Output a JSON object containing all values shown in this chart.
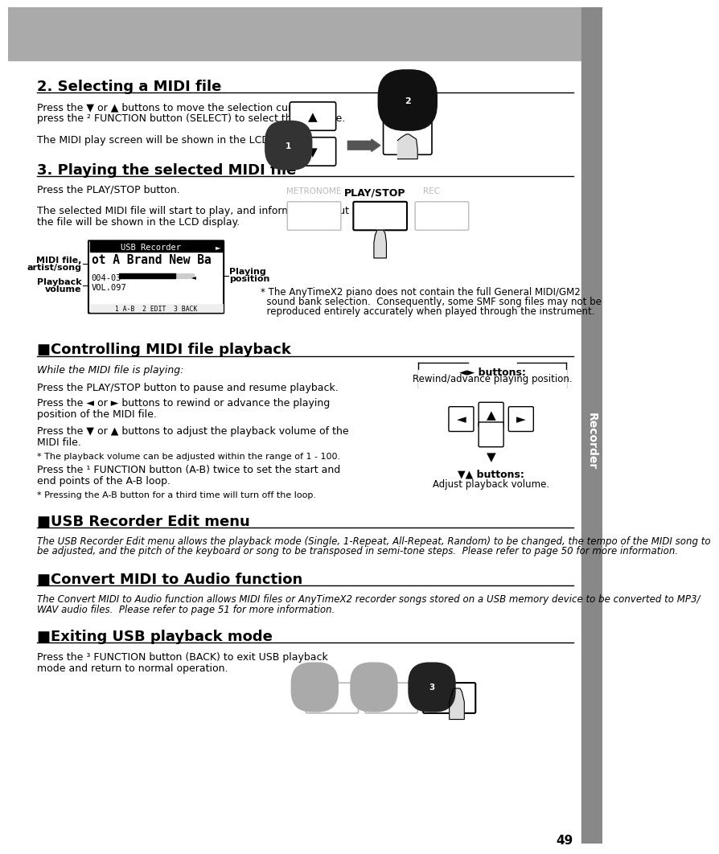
{
  "page_number": "49",
  "header_color": "#aaaaaa",
  "sidebar_color": "#888888",
  "title_bar_text": "Recorder",
  "section2_title": "2. Selecting a MIDI file",
  "section2_body1a": "Press the ▼ or ▲ buttons to move the selection cursor, then",
  "section2_body1b": "press the ² FUNCTION button (SELECT) to select the MIDI file.",
  "section2_body2": "The MIDI play screen will be shown in the LCD display.",
  "section3_title": "3. Playing the selected MIDI file",
  "section3_body1": "Press the PLAY/STOP button.",
  "section3_body2a": "The selected MIDI file will start to play, and information about",
  "section3_body2b": "the file will be shown in the LCD display.",
  "section3_note1": "* The AnyTimeX2 piano does not contain the full General MIDI/GM2",
  "section3_note2": "  sound bank selection.  Consequently, some SMF song files may not be",
  "section3_note3": "  reproduced entirely accurately when played through the instrument.",
  "section4_title": "■Controlling MIDI file playback",
  "section4_italic": "While the MIDI file is playing:",
  "section4_body1": "Press the PLAY/STOP button to pause and resume playback.",
  "section4_body2a": "Press the ◄ or ► buttons to rewind or advance the playing",
  "section4_body2b": "position of the MIDI file.",
  "section4_body3a": "Press the ▼ or ▲ buttons to adjust the playback volume of the",
  "section4_body3b": "MIDI file.",
  "section4_note1": "* The playback volume can be adjusted within the range of 1 - 100.",
  "section4_body4a": "Press the ¹ FUNCTION button (A-B) twice to set the start and",
  "section4_body4b": "end points of the A-B loop.",
  "section4_note2": "* Pressing the A-B button for a third time will turn off the loop.",
  "section5_title": "■USB Recorder Edit menu",
  "section5_body1": "The USB Recorder Edit menu allows the playback mode (Single, 1-Repeat, All-Repeat, Random) to be changed, the tempo of the MIDI song to",
  "section5_body2": "be adjusted, and the pitch of the keyboard or song to be transposed in semi-tone steps.  Please refer to page 50 for more information.",
  "section6_title": "■Convert MIDI to Audio function",
  "section6_body1": "The Convert MIDI to Audio function allows MIDI files or AnyTimeX2 recorder songs stored on a USB memory device to be converted to MP3/",
  "section6_body2": "WAV audio files.  Please refer to page 51 for more information.",
  "section7_title": "■Exiting USB playback mode",
  "section7_body1": "Press the ³ FUNCTION button (BACK) to exit USB playback",
  "section7_body2": "mode and return to normal operation.",
  "lr_buttons_label": "◄► buttons:",
  "lr_buttons_desc": "Rewind/advance playing position.",
  "ud_buttons_label": "▼▲ buttons:",
  "ud_buttons_desc": "Adjust playback volume.",
  "midi_display_title": "USB Recorder",
  "midi_display_line1": "ot A Brand New Ba",
  "midi_display_line2": "004-03",
  "midi_display_line3": "VOL.097",
  "midi_display_btns": "1 A-B  2 EDIT  3 BACK",
  "label_midi_file1": "MIDI file,",
  "label_midi_file2": "artist/song",
  "label_playback_vol1": "Playback",
  "label_playback_vol2": "volume",
  "label_playing_pos1": "Playing",
  "label_playing_pos2": "position",
  "metronome_label": "METRONOME",
  "playstop_label": "PLAY/STOP",
  "rec_label": "REC",
  "up_arrow": "▲",
  "down_arrow": "▼",
  "left_arrow": "◄",
  "right_arrow": "►"
}
